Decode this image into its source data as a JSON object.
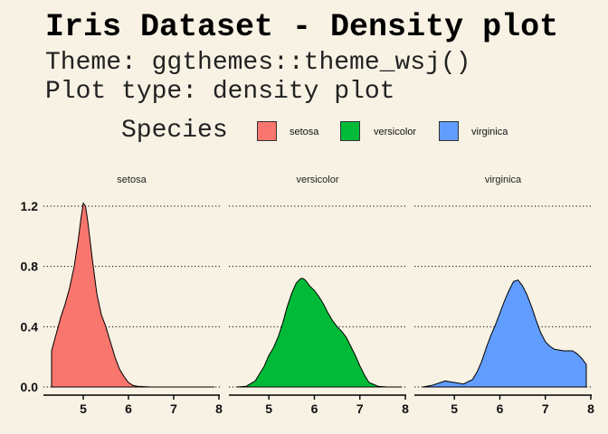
{
  "title": "Iris Dataset - Density plot",
  "subtitle_lines": [
    "Theme: ggthemes::theme_wsj()",
    "Plot type: density plot"
  ],
  "legend": {
    "title": "Species",
    "items": [
      {
        "label": "setosa",
        "color": "#f8766d"
      },
      {
        "label": "versicolor",
        "color": "#00ba38"
      },
      {
        "label": "virginica",
        "color": "#619cff"
      }
    ]
  },
  "colors": {
    "background": "#f8f2e4",
    "outline": "#000000",
    "grid": "#000000"
  },
  "chart_data": {
    "type": "area",
    "facet_by": "Species",
    "xlim": [
      4.3,
      7.9
    ],
    "ylim": [
      0,
      1.27
    ],
    "x_ticks": [
      5,
      6,
      7,
      8
    ],
    "y_ticks": [
      0.0,
      0.4,
      0.8,
      1.2
    ],
    "y_tick_labels": [
      "0.0",
      "0.4",
      "0.8",
      "1.2"
    ],
    "grid": {
      "horizontal": true,
      "vertical": false,
      "style": "dotted"
    },
    "legend_position": "top",
    "series": [
      {
        "name": "setosa",
        "x": [
          4.3,
          4.4,
          4.5,
          4.6,
          4.7,
          4.8,
          4.9,
          4.95,
          5.0,
          5.05,
          5.1,
          5.2,
          5.3,
          5.4,
          5.5,
          5.6,
          5.7,
          5.8,
          5.9,
          6.0,
          6.1,
          6.2,
          6.5,
          7.0,
          7.5,
          7.9
        ],
        "y": [
          0.24,
          0.35,
          0.46,
          0.55,
          0.66,
          0.8,
          1.0,
          1.12,
          1.22,
          1.2,
          1.1,
          0.85,
          0.62,
          0.48,
          0.4,
          0.3,
          0.2,
          0.12,
          0.07,
          0.03,
          0.01,
          0.005,
          0.0,
          0.0,
          0.0,
          0.0
        ]
      },
      {
        "name": "versicolor",
        "x": [
          4.3,
          4.5,
          4.7,
          4.9,
          5.0,
          5.1,
          5.2,
          5.3,
          5.4,
          5.5,
          5.6,
          5.7,
          5.75,
          5.8,
          5.9,
          6.0,
          6.1,
          6.2,
          6.3,
          6.4,
          6.5,
          6.6,
          6.7,
          6.8,
          6.9,
          7.0,
          7.1,
          7.2,
          7.4,
          7.6,
          7.9
        ],
        "y": [
          0.0,
          0.005,
          0.04,
          0.14,
          0.21,
          0.26,
          0.33,
          0.42,
          0.53,
          0.62,
          0.69,
          0.72,
          0.72,
          0.71,
          0.67,
          0.64,
          0.6,
          0.55,
          0.49,
          0.44,
          0.4,
          0.37,
          0.33,
          0.27,
          0.21,
          0.14,
          0.08,
          0.03,
          0.005,
          0.0,
          0.0
        ]
      },
      {
        "name": "virginica",
        "x": [
          4.3,
          4.5,
          4.7,
          4.8,
          4.9,
          5.0,
          5.2,
          5.4,
          5.5,
          5.6,
          5.7,
          5.8,
          5.9,
          6.0,
          6.1,
          6.2,
          6.3,
          6.4,
          6.5,
          6.6,
          6.7,
          6.8,
          6.9,
          7.0,
          7.1,
          7.2,
          7.4,
          7.6,
          7.7,
          7.8,
          7.9
        ],
        "y": [
          0.0,
          0.01,
          0.03,
          0.04,
          0.035,
          0.03,
          0.02,
          0.05,
          0.1,
          0.17,
          0.26,
          0.34,
          0.41,
          0.49,
          0.57,
          0.64,
          0.7,
          0.71,
          0.67,
          0.61,
          0.53,
          0.44,
          0.36,
          0.3,
          0.27,
          0.25,
          0.24,
          0.24,
          0.22,
          0.19,
          0.15
        ]
      }
    ]
  }
}
